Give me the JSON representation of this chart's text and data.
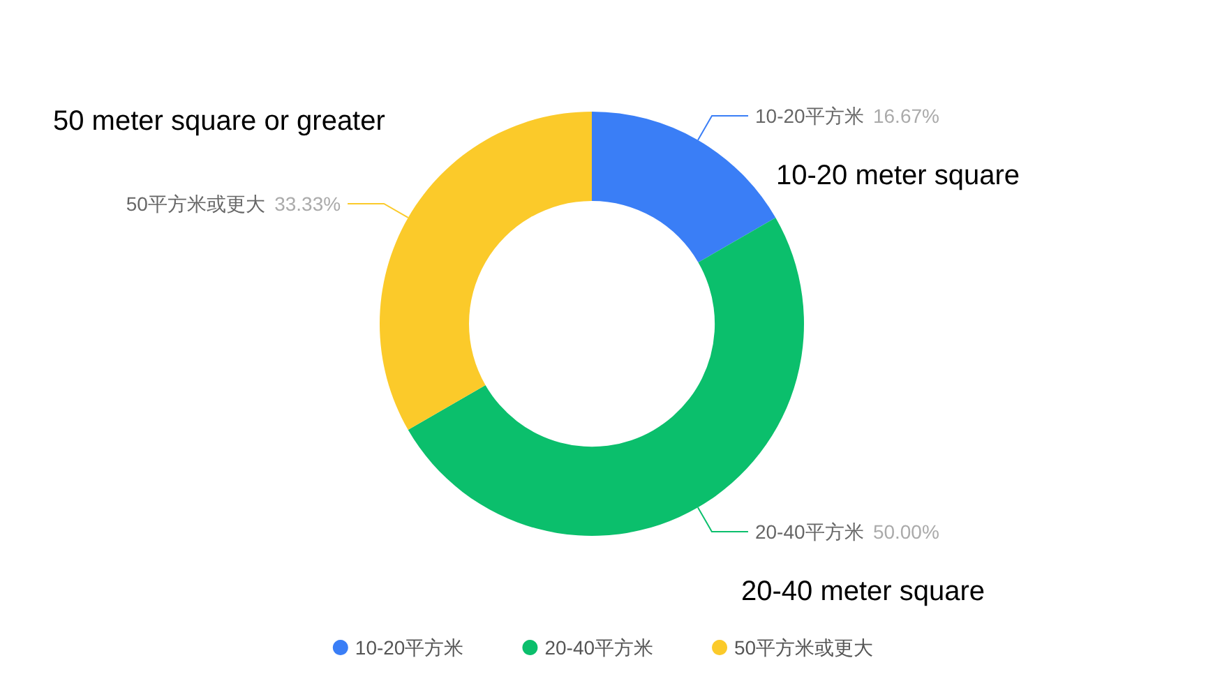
{
  "chart_data": {
    "type": "donut",
    "categories": [
      "10-20平方米",
      "20-40平方米",
      "50平方米或更大"
    ],
    "values": [
      16.67,
      50.0,
      33.33
    ],
    "value_labels": [
      "16.67%",
      "50.00%",
      "33.33%"
    ],
    "colors": [
      "#3a7ef6",
      "#0bbf6c",
      "#fbca2a"
    ],
    "legend": "bottom",
    "annotations": [
      "50 meter square or greater",
      "10-20 meter square",
      "20-40 meter square"
    ]
  }
}
